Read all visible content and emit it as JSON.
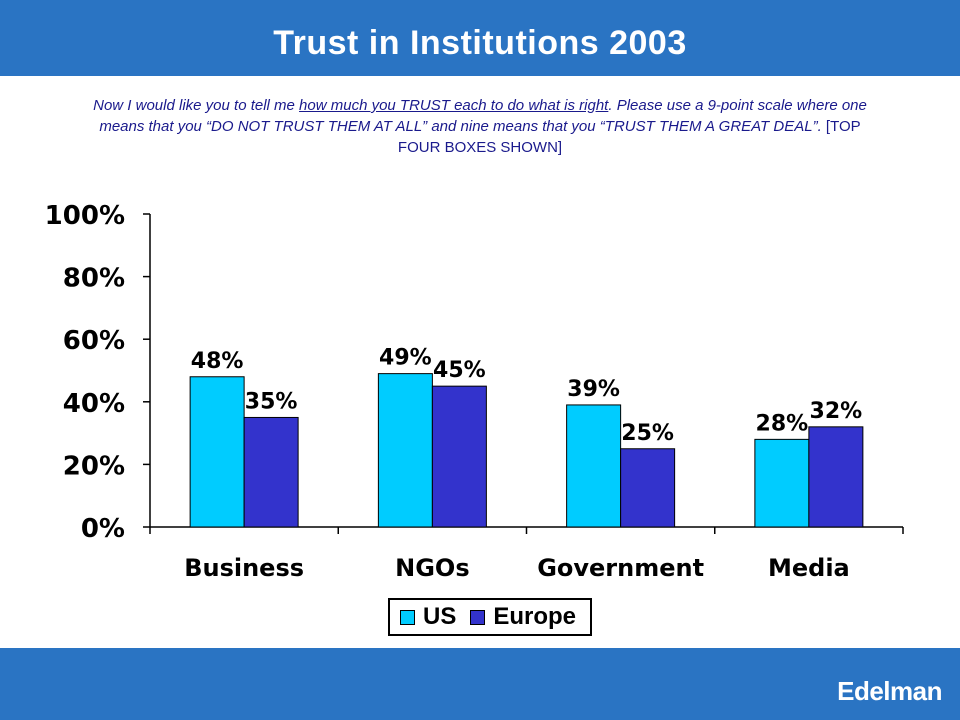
{
  "header": {
    "title": "Trust in Institutions 2003"
  },
  "question": {
    "part1": "Now I would like you to tell me ",
    "underlined": "how much you TRUST each to do what is right",
    "part2": ". Please use a 9-point scale where one means that you “DO NOT TRUST THEM AT ALL” and nine means that you “TRUST THEM A GREAT DEAL”.",
    "part3": " [TOP FOUR BOXES SHOWN]"
  },
  "footer": {
    "brand": "Edelman"
  },
  "colors": {
    "us": "#00ccff",
    "europe": "#3333cc",
    "band": "#2a74c3"
  },
  "chart_data": {
    "type": "bar",
    "categories": [
      "Business",
      "NGOs",
      "Government",
      "Media"
    ],
    "series": [
      {
        "name": "US",
        "values": [
          48,
          49,
          39,
          28
        ],
        "labels": [
          "48%",
          "49%",
          "39%",
          "28%"
        ]
      },
      {
        "name": "Europe",
        "values": [
          35,
          45,
          25,
          32
        ],
        "labels": [
          "35%",
          "45%",
          "25%",
          "32%"
        ]
      }
    ],
    "yticks": [
      "0%",
      "20%",
      "40%",
      "60%",
      "80%",
      "100%"
    ],
    "ylim": [
      0,
      100
    ],
    "legend_position": "bottom-center"
  }
}
